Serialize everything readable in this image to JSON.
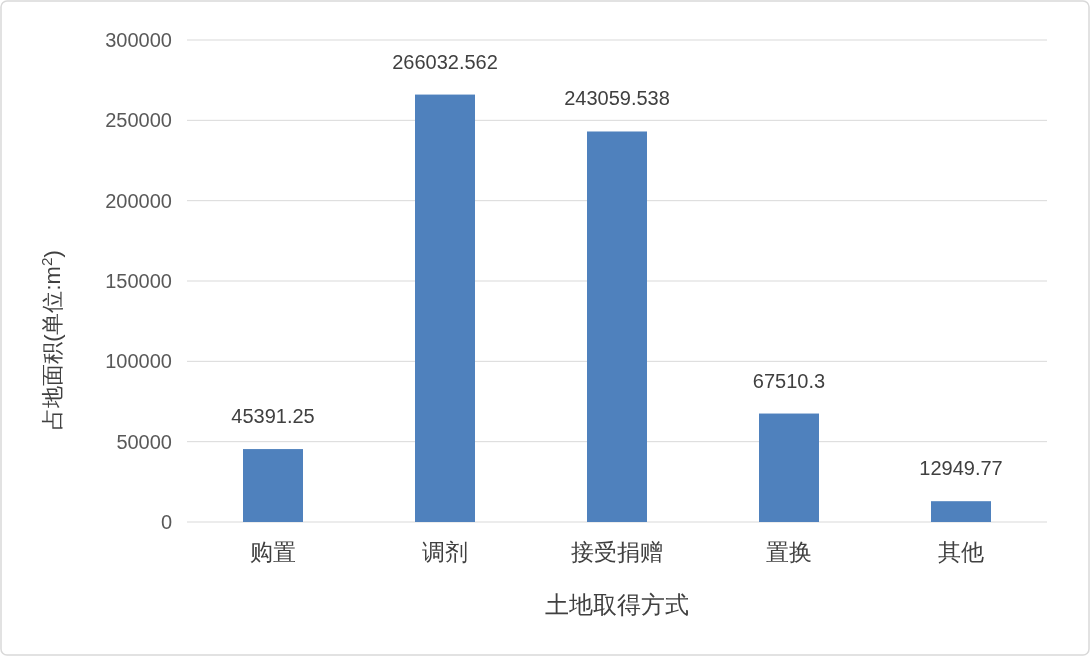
{
  "chart_data": {
    "type": "bar",
    "xlabel": "土地取得方式",
    "ylabel": "占地面积(单位:m$^{2}$)",
    "categories": [
      "购置",
      "调剂",
      "接受捐赠",
      "置换",
      "其他"
    ],
    "values": [
      45391.25,
      266032.562,
      243059.538,
      67510.3,
      12949.77
    ],
    "color": "#4f81bd",
    "ylim": [
      0,
      300000
    ],
    "yticks": [
      0,
      50000,
      100000,
      150000,
      200000,
      250000,
      300000
    ],
    "grid": "y",
    "data_labels": true
  }
}
